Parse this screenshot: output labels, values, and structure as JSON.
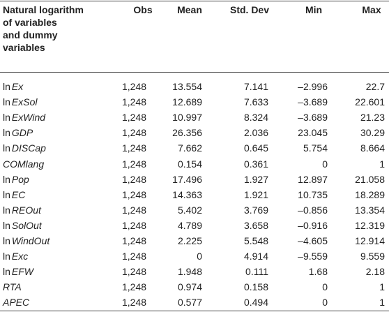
{
  "table": {
    "header": {
      "variable": [
        "Natural logarithm",
        "of variables",
        "and dummy",
        "variables"
      ],
      "columns": [
        "Obs",
        "Mean",
        "Std. Dev",
        "Min",
        "Max"
      ]
    },
    "rows": [
      {
        "prefix": "ln",
        "name": "Ex",
        "values": [
          "1,248",
          "13.554",
          "7.141",
          "–2.996",
          "22.7"
        ]
      },
      {
        "prefix": "ln",
        "name": "ExSol",
        "values": [
          "1,248",
          "12.689",
          "7.633",
          "–3.689",
          "22.601"
        ]
      },
      {
        "prefix": "ln",
        "name": "ExWind",
        "values": [
          "1,248",
          "10.997",
          "8.324",
          "–3.689",
          "21.23"
        ]
      },
      {
        "prefix": "ln",
        "name": "GDP",
        "values": [
          "1,248",
          "26.356",
          "2.036",
          "23.045",
          "30.29"
        ]
      },
      {
        "prefix": "ln",
        "name": "DISCap",
        "values": [
          "1,248",
          "7.662",
          "0.645",
          "5.754",
          "8.664"
        ]
      },
      {
        "name": "COMlang",
        "values": [
          "1,248",
          "0.154",
          "0.361",
          "0",
          "1"
        ]
      },
      {
        "prefix": "ln",
        "name": "Pop",
        "values": [
          "1,248",
          "17.496",
          "1.927",
          "12.897",
          "21.058"
        ]
      },
      {
        "prefix": "ln",
        "name": "EC",
        "values": [
          "1,248",
          "14.363",
          "1.921",
          "10.735",
          "18.289"
        ]
      },
      {
        "prefix": "ln",
        "name": "REOut",
        "values": [
          "1,248",
          "5.402",
          "3.769",
          "–0.856",
          "13.354"
        ]
      },
      {
        "prefix": "ln",
        "name": "SolOut",
        "values": [
          "1,248",
          "4.789",
          "3.658",
          "–0.916",
          "12.319"
        ]
      },
      {
        "prefix": "ln",
        "name": "WindOut",
        "values": [
          "1,248",
          "2.225",
          "5.548",
          "–4.605",
          "12.914"
        ]
      },
      {
        "prefix": "ln",
        "name": "Exc",
        "values": [
          "1,248",
          "0",
          "4.914",
          "–9.559",
          "9.559"
        ]
      },
      {
        "prefix": "ln",
        "name": "EFW",
        "values": [
          "1,248",
          "1.948",
          "0.111",
          "1.68",
          "2.18"
        ]
      },
      {
        "name": "RTA",
        "values": [
          "1,248",
          "0.974",
          "0.158",
          "0",
          "1"
        ]
      },
      {
        "name": "APEC",
        "values": [
          "1,248",
          "0.577",
          "0.494",
          "0",
          "1"
        ]
      }
    ]
  }
}
